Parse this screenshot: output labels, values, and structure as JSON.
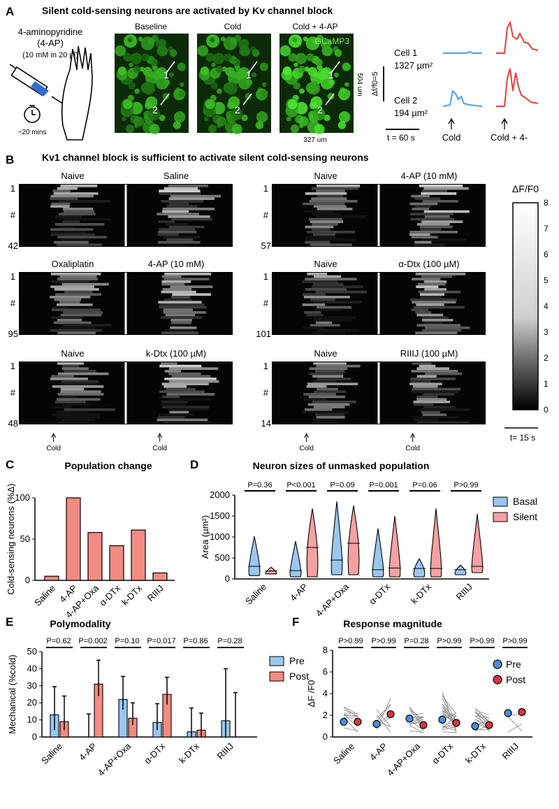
{
  "panelA": {
    "letter": "A",
    "title": "Silent cold-sensing neurons are activated by Kv channel block",
    "drug_line1": "4-aminopyridine",
    "drug_line2": "(4-AP)",
    "drug_line3": "(10 mM in 20 µl)",
    "time_label": "~20 mins",
    "images": [
      {
        "label": "Baseline"
      },
      {
        "label": "Cold"
      },
      {
        "label": "Cold + 4-AP"
      }
    ],
    "indicator": "GCaMP3",
    "marker1": "1",
    "marker2": "2",
    "height_label": "504 um",
    "width_label": "327 um",
    "scale_y": "Δf/f0=5",
    "cell1_name": "Cell 1",
    "cell1_area": "1327 µm²",
    "cell2_name": "Cell 2",
    "cell2_area": "194 µm²",
    "time_scale": "t = 60 s",
    "stim1": "Cold",
    "stim2": "Cold + 4-"
  },
  "panelB": {
    "letter": "B",
    "title": "Kv1 channel block is sufficient to activate silent cold-sensing neurons",
    "row_first": "1",
    "row_mid": "#",
    "heatmaps": [
      {
        "left": "Naive",
        "right": "Saline",
        "n": "42"
      },
      {
        "left": "Naive",
        "right": "4-AP (10 mM)",
        "n": "57"
      },
      {
        "left": "Oxaliplatin",
        "right": "4-AP (10 mM)",
        "n": "95"
      },
      {
        "left": "Naive",
        "right": "α-Dtx (100 µM)",
        "n": "101"
      },
      {
        "left": "Naive",
        "right": "k-Dtx (100 µM)",
        "n": "48"
      },
      {
        "left": "Naive",
        "right": "RIIIJ (100 µM)",
        "n": "14"
      }
    ],
    "stim": "Cold",
    "colorbar_title": "ΔF/F0",
    "colorbar_ticks": [
      "8",
      "7",
      "6",
      "5",
      "4",
      "3",
      "2",
      "1",
      "0"
    ],
    "time_scale": "t= 15 s"
  },
  "chart_data": [
    {
      "id": "C",
      "type": "bar",
      "title": "Population change",
      "ylabel": "Cold-sensing neurons (%Δ)",
      "categories": [
        "Saline",
        "4-AP",
        "4-AP+Oxa",
        "α-DTx",
        "k-DTx",
        "RIIIJ"
      ],
      "values": [
        5,
        100,
        58,
        42,
        61,
        9
      ],
      "ylim": [
        0,
        100
      ],
      "yticks": [
        "0",
        "50",
        "100"
      ],
      "color": "#f28b82"
    },
    {
      "id": "D",
      "type": "violin",
      "title": "Neuron sizes of unmasked population",
      "ylabel": "Area (µm²)",
      "categories": [
        "Saline",
        "4-AP",
        "4-AP+Oxa",
        "α-DTx",
        "k-DTx",
        "RIIIJ"
      ],
      "pvalues": [
        "P=0.36",
        "P<0.001",
        "P=0.09",
        "P=0.001",
        "P=0.06",
        "P>0.99"
      ],
      "series": [
        {
          "name": "Basal",
          "color": "#9ac7ee",
          "medians": [
            300,
            200,
            450,
            220,
            250,
            220
          ],
          "ranges": [
            [
              80,
              1020
            ],
            [
              50,
              900
            ],
            [
              100,
              1850
            ],
            [
              50,
              1200
            ],
            [
              50,
              480
            ],
            [
              100,
              330
            ]
          ]
        },
        {
          "name": "Silent",
          "color": "#f6a1a1",
          "medians": [
            190,
            750,
            850,
            260,
            250,
            300
          ],
          "ranges": [
            [
              120,
              280
            ],
            [
              50,
              1680
            ],
            [
              100,
              1750
            ],
            [
              50,
              1500
            ],
            [
              50,
              1680
            ],
            [
              150,
              1550
            ]
          ]
        }
      ],
      "ylim": [
        0,
        2000
      ],
      "yticks": [
        "0",
        "500",
        "1000",
        "1500",
        "2000"
      ]
    },
    {
      "id": "E",
      "type": "bar",
      "title": "Polymodality",
      "ylabel": "Mechanical (%cold)",
      "categories": [
        "Saline",
        "4-AP",
        "4-AP+Oxa",
        "α-DTx",
        "k-DTx",
        "RIIIJ"
      ],
      "pvalues": [
        "P=0.62",
        "P=0.002",
        "P=0.10",
        "P=0.017",
        "P=0.86",
        "P=0.28"
      ],
      "series": [
        {
          "name": "Pre",
          "color": "#9ac7ee",
          "values": [
            13,
            0,
            22,
            8.5,
            3,
            9.5
          ],
          "err_hi": [
            29.5,
            13.5,
            35.5,
            19.5,
            17,
            40
          ],
          "err_lo": [
            4,
            0,
            16,
            4,
            0,
            0
          ]
        },
        {
          "name": "Post",
          "color": "#f28b82",
          "values": [
            9,
            31,
            11,
            25,
            4,
            0
          ],
          "err_hi": [
            24,
            45,
            20,
            35,
            14,
            26
          ],
          "err_lo": [
            4,
            24,
            7,
            19,
            0,
            0
          ]
        }
      ],
      "ylim": [
        0,
        50
      ],
      "yticks": [
        "0",
        "10",
        "20",
        "30",
        "40",
        "50"
      ]
    },
    {
      "id": "F",
      "type": "scatter",
      "title": "Response magnitude",
      "ylabel": "ΔF /F0",
      "categories": [
        "Saline",
        "4-AP",
        "4-AP+Oxa",
        "α-DTx",
        "k-DTx",
        "RIIIJ"
      ],
      "pvalues": [
        "P>0.99",
        "P>0.99",
        "P=0.28",
        "P>0.99",
        "P>0.99",
        "P>0.99"
      ],
      "series": [
        {
          "name": "Pre",
          "color": "#4a90d9",
          "values": [
            1.4,
            1.2,
            1.7,
            1.6,
            1.0,
            2.2
          ]
        },
        {
          "name": "Post",
          "color": "#d9363e",
          "values": [
            1.4,
            2.1,
            1.1,
            1.3,
            1.1,
            2.3
          ]
        }
      ],
      "ylim": [
        0,
        8
      ],
      "yticks": [
        "0",
        "2",
        "4",
        "6",
        "8"
      ]
    }
  ]
}
